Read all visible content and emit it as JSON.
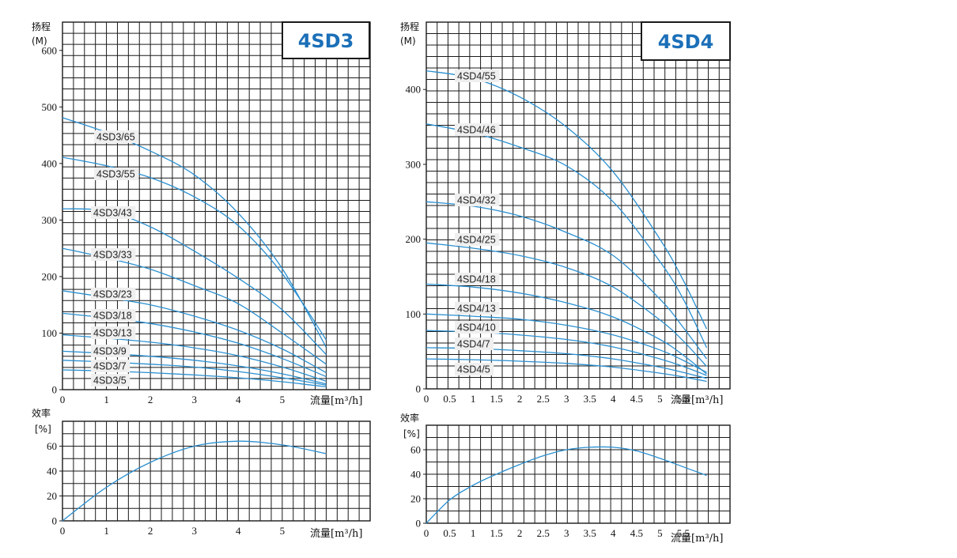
{
  "chart_data": [
    {
      "id": "4sd3_head",
      "type": "line",
      "title": "4SD3",
      "ylabel": "扬程",
      "yunit": "(M)",
      "xlabel": "流量",
      "xunit": "[m³/h]",
      "xlim": [
        0,
        7
      ],
      "ylim": [
        0,
        650
      ],
      "xticks": [
        "0",
        "1",
        "2",
        "3",
        "4",
        "5"
      ],
      "yticks": [
        "0",
        "100",
        "200",
        "300",
        "400",
        "500",
        "600"
      ],
      "series": [
        {
          "name": "4SD3/65",
          "x": [
            0,
            1,
            2,
            3,
            4,
            5,
            6
          ],
          "y": [
            481,
            455,
            422,
            380,
            312,
            214,
            75
          ]
        },
        {
          "name": "4SD3/55",
          "x": [
            0,
            1,
            2,
            3,
            4,
            5,
            6
          ],
          "y": [
            411,
            396,
            375,
            341,
            290,
            205,
            88
          ]
        },
        {
          "name": "4SD3/43",
          "x": [
            0,
            1,
            2,
            3,
            4,
            5,
            6
          ],
          "y": [
            320,
            316,
            288,
            245,
            197,
            141,
            62
          ]
        },
        {
          "name": "4SD3/33",
          "x": [
            0,
            1,
            2,
            3,
            4,
            5,
            6
          ],
          "y": [
            250,
            233,
            213,
            184,
            152,
            100,
            45
          ]
        },
        {
          "name": "4SD3/23",
          "x": [
            0,
            1,
            2,
            3,
            4,
            5,
            6
          ],
          "y": [
            175,
            163,
            150,
            130,
            105,
            72,
            30
          ]
        },
        {
          "name": "4SD3/18",
          "x": [
            0,
            1,
            2,
            3,
            4,
            5,
            6
          ],
          "y": [
            135,
            127,
            117,
            102,
            82,
            55,
            23
          ]
        },
        {
          "name": "4SD3/13",
          "x": [
            0,
            1,
            2,
            3,
            4,
            5,
            6
          ],
          "y": [
            97,
            91,
            84,
            74,
            60,
            40,
            15
          ]
        },
        {
          "name": "4SD3/9",
          "x": [
            0,
            1,
            2,
            3,
            4,
            5,
            6
          ],
          "y": [
            68,
            64,
            59,
            52,
            42,
            28,
            10
          ]
        },
        {
          "name": "4SD3/7",
          "x": [
            0,
            1,
            2,
            3,
            4,
            5,
            6
          ],
          "y": [
            52,
            49,
            45,
            40,
            32,
            21,
            8
          ]
        },
        {
          "name": "4SD3/5",
          "x": [
            0,
            1,
            2,
            3,
            4,
            5,
            6
          ],
          "y": [
            35,
            33,
            30,
            26,
            21,
            14,
            5
          ]
        }
      ]
    },
    {
      "id": "4sd3_eff",
      "type": "line",
      "ylabel": "效率",
      "yunit": "[%]",
      "xlabel": "流量",
      "xunit": "[m³/h]",
      "xlim": [
        0,
        7
      ],
      "ylim": [
        0,
        80
      ],
      "xticks": [
        "0",
        "1",
        "2",
        "3",
        "4",
        "5"
      ],
      "yticks": [
        "0",
        "20",
        "40",
        "60"
      ],
      "series": [
        {
          "x": [
            0,
            1,
            2,
            3,
            4,
            5,
            6
          ],
          "y": [
            0,
            27,
            47,
            60,
            64,
            61,
            54
          ]
        }
      ]
    },
    {
      "id": "4sd4_head",
      "type": "line",
      "title": "4SD4",
      "ylabel": "扬程",
      "yunit": "(M)",
      "xlabel": "流量",
      "xunit": "[m³/h]",
      "xlim": [
        0,
        6.5
      ],
      "ylim": [
        0,
        490
      ],
      "xticks": [
        "0",
        "0.5",
        "1",
        "1.5",
        "2",
        "2.5",
        "3",
        "3.5",
        "4",
        "4.5",
        "5",
        "5.5"
      ],
      "yticks": [
        "0",
        "100",
        "200",
        "300",
        "400"
      ],
      "series": [
        {
          "name": "4SD4/55",
          "x": [
            0,
            1,
            2,
            3,
            4,
            5,
            5.5,
            6
          ],
          "y": [
            425,
            415,
            390,
            350,
            290,
            200,
            145,
            80
          ]
        },
        {
          "name": "4SD4/46",
          "x": [
            0,
            1,
            2,
            3,
            4,
            5,
            5.5,
            6
          ],
          "y": [
            354,
            342,
            323,
            298,
            250,
            170,
            120,
            55
          ]
        },
        {
          "name": "4SD4/32",
          "x": [
            0,
            1,
            2,
            3,
            4,
            5,
            5.5,
            6
          ],
          "y": [
            250,
            244,
            231,
            209,
            178,
            120,
            82,
            40
          ]
        },
        {
          "name": "4SD4/25",
          "x": [
            0,
            1,
            2,
            3,
            4,
            5,
            5.5,
            6
          ],
          "y": [
            195,
            188,
            178,
            162,
            136,
            92,
            64,
            30
          ]
        },
        {
          "name": "4SD4/18",
          "x": [
            0,
            1,
            2,
            3,
            4,
            5,
            5.5,
            6
          ],
          "y": [
            140,
            136,
            128,
            115,
            96,
            66,
            45,
            20
          ]
        },
        {
          "name": "4SD4/13",
          "x": [
            0,
            1,
            2,
            3,
            4,
            5,
            5.5,
            6
          ],
          "y": [
            100,
            97,
            93,
            85,
            72,
            52,
            38,
            22
          ]
        },
        {
          "name": "4SD4/10",
          "x": [
            0,
            1,
            2,
            3,
            4,
            5,
            5.5,
            6
          ],
          "y": [
            78,
            76,
            72,
            66,
            56,
            40,
            30,
            18
          ]
        },
        {
          "name": "4SD4/7",
          "x": [
            0,
            1,
            2,
            3,
            4,
            5,
            5.5,
            6
          ],
          "y": [
            55,
            54,
            51,
            47,
            40,
            29,
            22,
            14
          ]
        },
        {
          "name": "4SD4/5",
          "x": [
            0,
            1,
            2,
            3,
            4,
            5,
            5.5,
            6
          ],
          "y": [
            40,
            39,
            37,
            34,
            29,
            21,
            16,
            10
          ]
        }
      ]
    },
    {
      "id": "4sd4_eff",
      "type": "line",
      "ylabel": "效率",
      "yunit": "[%]",
      "xlabel": "流量",
      "xunit": "[m³/h]",
      "xlim": [
        0,
        6.5
      ],
      "ylim": [
        0,
        80
      ],
      "xticks": [
        "0",
        "0.5",
        "1",
        "1.5",
        "2",
        "2.5",
        "3",
        "3.5",
        "4",
        "4.5",
        "5",
        "5.5"
      ],
      "yticks": [
        "0",
        "20",
        "40",
        "60"
      ],
      "series": [
        {
          "x": [
            0,
            0.5,
            1,
            1.5,
            2,
            2.5,
            3,
            3.5,
            4,
            4.5,
            5,
            5.5,
            6
          ],
          "y": [
            0,
            19,
            31,
            40,
            48,
            55,
            60,
            62,
            62,
            59,
            53,
            46,
            39
          ]
        }
      ]
    }
  ],
  "colors": {
    "curve": "#2a8fd0",
    "badge_text": "#1b6fb8",
    "grid": "#1a1a1a"
  }
}
